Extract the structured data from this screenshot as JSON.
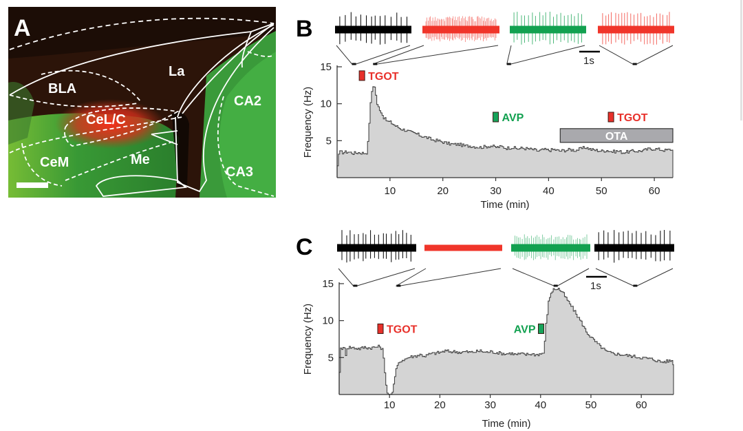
{
  "panels": {
    "A": {
      "letter": "A",
      "regions": [
        {
          "name": "La",
          "label": "La"
        },
        {
          "name": "BLA",
          "label": "BLA"
        },
        {
          "name": "CeL/C",
          "label": "CeL/C"
        },
        {
          "name": "CeM",
          "label": "CeM"
        },
        {
          "name": "Me",
          "label": "Me"
        },
        {
          "name": "CA2",
          "label": "CA2"
        },
        {
          "name": "CA3",
          "label": "CA3"
        }
      ],
      "colors": {
        "background": "#2a1208",
        "green": "#2fa83a",
        "red": "#e0261c",
        "outline": "#ffffff"
      }
    },
    "B": {
      "letter": "B",
      "scale_bar_label": "1s",
      "traces": [
        {
          "color": "#000000",
          "type": "sparse",
          "spike_count": 14,
          "sample_time_min": 3.2
        },
        {
          "color": "#f0352a",
          "type": "dense",
          "spike_count": 60,
          "sample_time_min": 7.2
        },
        {
          "color": "#12a150",
          "type": "sparse",
          "spike_count": 20,
          "sample_time_min": 32.5
        },
        {
          "color": "#f0352a",
          "type": "sparse",
          "spike_count": 22,
          "sample_time_min": 56.3
        }
      ]
    },
    "C": {
      "letter": "C",
      "scale_bar_label": "1s",
      "traces": [
        {
          "color": "#000000",
          "type": "sparse",
          "spike_count": 18,
          "sample_time_min": 3.2
        },
        {
          "color": "#f0352a",
          "type": "silent",
          "spike_count": 0,
          "sample_time_min": 11.8
        },
        {
          "color": "#12a150",
          "type": "dense",
          "spike_count": 40,
          "sample_time_min": 43.0
        },
        {
          "color": "#000000",
          "type": "sparse",
          "spike_count": 16,
          "sample_time_min": 58.8
        }
      ]
    }
  },
  "chart_data": [
    {
      "id": "B",
      "type": "area",
      "title": "",
      "xlabel": "Time (min)",
      "ylabel": "Frequency (Hz)",
      "xlim": [
        0,
        63.5
      ],
      "ylim": [
        0,
        15
      ],
      "xticks": [
        10,
        20,
        30,
        40,
        50,
        60
      ],
      "yticks": [
        5,
        10,
        15
      ],
      "grid": false,
      "fill_color": "#d4d4d4",
      "line_color": "#444444",
      "series": [
        {
          "name": "Firing frequency",
          "x": [
            0,
            0.3,
            1,
            2,
            3,
            4,
            5,
            5.5,
            5.8,
            6.0,
            6.3,
            6.6,
            6.9,
            7.2,
            7.5,
            7.8,
            8.2,
            8.6,
            9.0,
            9.5,
            10,
            11,
            12,
            13,
            14,
            15,
            16,
            17,
            18,
            19,
            20,
            21,
            22,
            23,
            24,
            25,
            26,
            27,
            28,
            29,
            30,
            31,
            32,
            33,
            34,
            35,
            36,
            37,
            38,
            39,
            40,
            41,
            42,
            43,
            44,
            45,
            46,
            47,
            48,
            49,
            50,
            51,
            52,
            53,
            54,
            55,
            56,
            57,
            58,
            59,
            60,
            61,
            62,
            63,
            63.5
          ],
          "values": [
            1.6,
            3.5,
            3.4,
            3.5,
            3.3,
            3.4,
            3.3,
            3.4,
            5.0,
            7.5,
            10.5,
            12.3,
            12.6,
            11.5,
            9.8,
            9.5,
            9.0,
            8.3,
            7.9,
            7.6,
            7.5,
            7.0,
            6.6,
            6.4,
            6.1,
            5.9,
            5.6,
            5.4,
            5.1,
            5.0,
            4.8,
            4.6,
            4.5,
            4.5,
            4.3,
            4.3,
            4.2,
            4.1,
            4.2,
            4.3,
            4.1,
            4.2,
            4.0,
            4.1,
            3.9,
            4.0,
            3.9,
            3.8,
            3.6,
            3.8,
            3.7,
            3.8,
            3.6,
            3.7,
            3.8,
            3.7,
            3.9,
            4.1,
            3.8,
            3.7,
            3.6,
            3.7,
            3.5,
            3.6,
            3.4,
            3.5,
            3.6,
            3.6,
            3.7,
            3.9,
            3.9,
            3.8,
            3.7,
            3.8,
            3.6
          ]
        }
      ],
      "annotations": [
        {
          "label": "TGOT",
          "x": 4.7,
          "y": 13.8,
          "color": "#e8302a",
          "box_color": "#e8302a",
          "label_side": "right"
        },
        {
          "label": "AVP",
          "x": 30.0,
          "y": 8.2,
          "color": "#12a150",
          "box_color": "#17a35a",
          "label_side": "right"
        },
        {
          "label": "TGOT",
          "x": 51.8,
          "y": 8.2,
          "color": "#e8302a",
          "box_color": "#e8302a",
          "label_side": "right"
        }
      ],
      "bars": [
        {
          "label": "OTA",
          "x_start": 42.2,
          "x_end": 63.5,
          "y": 5.7,
          "fill": "#a9a9ad",
          "text_color": "#ffffff"
        }
      ]
    },
    {
      "id": "C",
      "type": "area",
      "title": "",
      "xlabel": "Time (min)",
      "ylabel": "Frequency (Hz)",
      "xlim": [
        0,
        66.4
      ],
      "ylim": [
        0,
        15
      ],
      "xticks": [
        10,
        20,
        30,
        40,
        50,
        60
      ],
      "yticks": [
        5,
        10,
        15
      ],
      "grid": false,
      "fill_color": "#d4d4d4",
      "line_color": "#444444",
      "series": [
        {
          "name": "Firing frequency",
          "x": [
            0,
            0.2,
            1,
            1.2,
            1.4,
            2,
            3,
            4,
            5,
            6,
            7,
            8,
            8.5,
            8.9,
            9.2,
            9.5,
            9.8,
            10.2,
            10.6,
            11.0,
            11.4,
            11.8,
            12.2,
            13,
            14,
            15,
            16,
            17,
            18,
            19,
            20,
            21,
            22,
            23,
            24,
            25,
            26,
            27,
            28,
            29,
            30,
            31,
            32,
            33,
            34,
            35,
            36,
            37,
            38,
            39,
            40,
            40.6,
            41.0,
            41.5,
            42.0,
            42.5,
            43.0,
            43.5,
            44.0,
            44.5,
            45,
            46,
            47,
            48,
            49,
            50,
            51,
            52,
            53,
            54,
            55,
            56,
            57,
            58,
            59,
            60,
            61,
            62,
            63,
            64,
            65,
            66,
            66.4
          ],
          "values": [
            3.0,
            6.3,
            6.2,
            5.2,
            6.3,
            6.4,
            6.3,
            6.2,
            6.4,
            6.3,
            6.4,
            6.5,
            6.1,
            4.0,
            1.5,
            0.2,
            0.0,
            0.0,
            0.6,
            2.5,
            3.8,
            4.2,
            4.6,
            4.8,
            5.1,
            5.2,
            5.4,
            5.2,
            5.5,
            5.6,
            5.7,
            5.9,
            5.8,
            5.8,
            5.7,
            5.8,
            5.7,
            5.8,
            5.9,
            5.7,
            5.8,
            5.7,
            5.6,
            5.5,
            5.6,
            5.4,
            5.5,
            5.4,
            5.5,
            5.4,
            5.5,
            5.7,
            9.5,
            12.5,
            13.8,
            14.2,
            14.3,
            14.3,
            14.0,
            13.6,
            13.0,
            12.0,
            10.9,
            9.8,
            8.5,
            7.7,
            7.0,
            6.4,
            5.8,
            5.6,
            5.5,
            5.4,
            5.3,
            5.2,
            5.1,
            5.0,
            4.9,
            4.8,
            4.6,
            4.4,
            4.5,
            4.6,
            4.0
          ]
        }
      ],
      "annotations": [
        {
          "label": "TGOT",
          "x": 8.2,
          "y": 8.9,
          "color": "#e8302a",
          "box_color": "#e8302a",
          "label_side": "right"
        },
        {
          "label": "AVP",
          "x": 40.1,
          "y": 8.9,
          "color": "#12a150",
          "box_color": "#17a35a",
          "label_side": "left"
        }
      ],
      "bars": []
    }
  ]
}
